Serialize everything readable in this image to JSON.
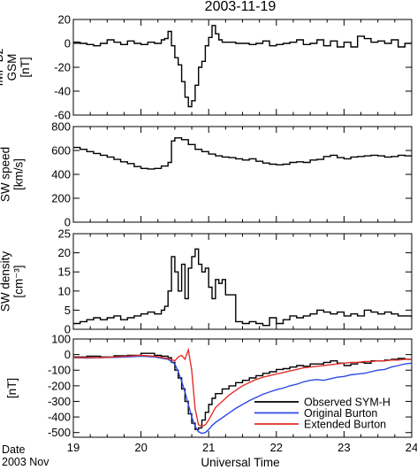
{
  "figure": {
    "title": "2003-11-19",
    "x_axis_label": "Universal Time",
    "date_label_line1": "Date",
    "date_label_line2": "2003 Nov"
  },
  "chart_data": [
    {
      "type": "line",
      "panel": "IMF Bz",
      "ylabel_lines": [
        "IMF Bz",
        "GSM",
        "[nT]"
      ],
      "xlim": [
        19,
        24
      ],
      "ylim": [
        -60,
        20
      ],
      "xticks": [
        19,
        20,
        21,
        22,
        23,
        24
      ],
      "yticks": [
        -60,
        -40,
        -20,
        0,
        20
      ],
      "step": true,
      "series": [
        {
          "name": "",
          "color": "#000000",
          "x": [
            19.0,
            19.1,
            19.2,
            19.3,
            19.4,
            19.5,
            19.6,
            19.7,
            19.8,
            19.9,
            20.0,
            20.1,
            20.2,
            20.3,
            20.35,
            20.4,
            20.45,
            20.5,
            20.55,
            20.6,
            20.65,
            20.7,
            20.75,
            20.8,
            20.85,
            20.9,
            20.95,
            21.0,
            21.05,
            21.1,
            21.15,
            21.2,
            21.3,
            21.4,
            21.5,
            21.6,
            21.7,
            21.8,
            21.9,
            22.0,
            22.1,
            22.2,
            22.3,
            22.4,
            22.5,
            22.6,
            22.7,
            22.8,
            22.9,
            23.0,
            23.1,
            23.2,
            23.3,
            23.4,
            23.5,
            23.6,
            23.7,
            23.8,
            23.9,
            24.0
          ],
          "y": [
            1,
            0,
            -1,
            -2,
            0,
            3,
            1,
            -1,
            2,
            0,
            -1,
            1,
            0,
            3,
            4,
            10,
            -2,
            -12,
            -18,
            -32,
            -45,
            -53,
            -48,
            -35,
            -20,
            -15,
            -2,
            5,
            15,
            8,
            3,
            1,
            1,
            0,
            0,
            -1,
            0,
            2,
            -2,
            -1,
            0,
            1,
            3,
            -1,
            0,
            3,
            -2,
            2,
            -3,
            1,
            -3,
            6,
            4,
            1,
            2,
            0,
            3,
            -3,
            0,
            1
          ]
        }
      ]
    },
    {
      "type": "line",
      "panel": "SW speed",
      "ylabel_lines": [
        "SW speed",
        "[km/s]"
      ],
      "xlim": [
        19,
        24
      ],
      "ylim": [
        0,
        800
      ],
      "xticks": [
        19,
        20,
        21,
        22,
        23,
        24
      ],
      "yticks": [
        0,
        200,
        400,
        600,
        800
      ],
      "step": true,
      "series": [
        {
          "name": "",
          "color": "#000000",
          "x": [
            19.0,
            19.1,
            19.2,
            19.3,
            19.4,
            19.5,
            19.6,
            19.7,
            19.8,
            19.9,
            20.0,
            20.1,
            20.2,
            20.3,
            20.4,
            20.45,
            20.5,
            20.6,
            20.7,
            20.8,
            20.9,
            21.0,
            21.1,
            21.2,
            21.3,
            21.4,
            21.5,
            21.6,
            21.7,
            21.8,
            21.9,
            22.0,
            22.1,
            22.2,
            22.3,
            22.4,
            22.5,
            22.6,
            22.7,
            22.8,
            22.9,
            23.0,
            23.1,
            23.2,
            23.3,
            23.4,
            23.5,
            23.6,
            23.7,
            23.8,
            23.9,
            24.0
          ],
          "y": [
            625,
            610,
            590,
            575,
            560,
            545,
            525,
            505,
            490,
            465,
            450,
            445,
            450,
            470,
            500,
            680,
            705,
            690,
            650,
            610,
            590,
            570,
            555,
            545,
            540,
            530,
            520,
            530,
            510,
            495,
            485,
            480,
            485,
            500,
            505,
            500,
            520,
            525,
            550,
            560,
            540,
            530,
            545,
            550,
            555,
            560,
            555,
            545,
            550,
            560,
            555,
            545
          ]
        }
      ]
    },
    {
      "type": "line",
      "panel": "SW density",
      "ylabel_lines": [
        "SW density",
        "[cm⁻³]"
      ],
      "xlim": [
        19,
        24
      ],
      "ylim": [
        0,
        25
      ],
      "xticks": [
        19,
        20,
        21,
        22,
        23,
        24
      ],
      "yticks": [
        0,
        5,
        10,
        15,
        20,
        25
      ],
      "step": true,
      "series": [
        {
          "name": "",
          "color": "#000000",
          "x": [
            19.0,
            19.1,
            19.2,
            19.3,
            19.4,
            19.5,
            19.6,
            19.7,
            19.8,
            19.9,
            20.0,
            20.1,
            20.2,
            20.3,
            20.35,
            20.4,
            20.45,
            20.5,
            20.55,
            20.6,
            20.65,
            20.7,
            20.75,
            20.8,
            20.85,
            20.9,
            20.95,
            21.0,
            21.05,
            21.1,
            21.15,
            21.2,
            21.25,
            21.3,
            21.4,
            21.5,
            21.6,
            21.7,
            21.8,
            21.9,
            22.0,
            22.1,
            22.2,
            22.3,
            22.4,
            22.5,
            22.6,
            22.7,
            22.8,
            22.9,
            23.0,
            23.1,
            23.2,
            23.3,
            23.4,
            23.5,
            23.6,
            23.7,
            23.8,
            23.9,
            24.0
          ],
          "y": [
            1.5,
            2,
            2.5,
            3,
            2.5,
            3,
            3.5,
            2.5,
            3,
            3.5,
            4,
            4.5,
            4,
            5,
            6,
            10,
            19,
            15,
            10,
            17,
            8,
            16,
            19,
            21,
            17,
            15,
            16,
            11,
            8,
            13,
            12,
            13,
            9,
            9,
            2,
            1.5,
            2,
            1.5,
            1,
            3,
            1.5,
            2.5,
            3.5,
            3,
            3.5,
            4,
            5,
            4.5,
            4,
            4.5,
            3.5,
            4,
            3.5,
            5,
            4.5,
            4,
            4.5,
            4,
            3.5,
            3.5,
            3
          ]
        }
      ]
    },
    {
      "type": "line",
      "panel": "SYM-H",
      "ylabel_lines": [
        "[nT]"
      ],
      "xlim": [
        19,
        24
      ],
      "ylim": [
        -530,
        100
      ],
      "xticks": [
        19,
        20,
        21,
        22,
        23,
        24
      ],
      "yticks": [
        -500,
        -400,
        -300,
        -200,
        -100,
        0,
        100
      ],
      "series": [
        {
          "name": "Observed SYM-H",
          "color": "#000000",
          "step": true,
          "x": [
            19.0,
            19.2,
            19.4,
            19.6,
            19.8,
            20.0,
            20.2,
            20.3,
            20.4,
            20.45,
            20.5,
            20.55,
            20.6,
            20.65,
            20.7,
            20.75,
            20.8,
            20.85,
            20.9,
            20.95,
            21.0,
            21.05,
            21.1,
            21.2,
            21.3,
            21.4,
            21.5,
            21.6,
            21.7,
            21.8,
            21.9,
            22.0,
            22.1,
            22.2,
            22.3,
            22.4,
            22.5,
            22.6,
            22.7,
            22.8,
            22.9,
            23.0,
            23.1,
            23.2,
            23.3,
            23.4,
            23.5,
            23.6,
            23.7,
            23.8,
            23.9,
            24.0
          ],
          "y": [
            -15,
            -10,
            -15,
            -8,
            -5,
            8,
            -5,
            -10,
            -20,
            -50,
            -100,
            -150,
            -220,
            -300,
            -380,
            -440,
            -480,
            -470,
            -420,
            -370,
            -320,
            -280,
            -250,
            -220,
            -200,
            -180,
            -165,
            -150,
            -135,
            -120,
            -110,
            -95,
            -90,
            -80,
            -70,
            -75,
            -60,
            -60,
            -50,
            -40,
            -55,
            -70,
            -60,
            -50,
            -55,
            -40,
            -40,
            -35,
            -30,
            -25,
            -30,
            -30
          ]
        },
        {
          "name": "Original Burton",
          "color": "#2d49e5",
          "x": [
            19.0,
            19.2,
            19.4,
            19.6,
            19.8,
            20.0,
            20.2,
            20.4,
            20.5,
            20.55,
            20.6,
            20.65,
            20.7,
            20.75,
            20.8,
            20.85,
            20.9,
            20.95,
            21.0,
            21.05,
            21.1,
            21.2,
            21.3,
            21.4,
            21.5,
            21.6,
            21.7,
            21.8,
            21.9,
            22.0,
            22.1,
            22.2,
            22.3,
            22.4,
            22.5,
            22.6,
            22.7,
            22.8,
            22.9,
            23.0,
            23.1,
            23.2,
            23.3,
            23.4,
            23.5,
            23.6,
            23.7,
            23.8,
            23.9,
            24.0
          ],
          "y": [
            -20,
            -22,
            -20,
            -18,
            -15,
            -10,
            -15,
            -30,
            -60,
            -110,
            -170,
            -240,
            -320,
            -400,
            -460,
            -495,
            -505,
            -500,
            -480,
            -455,
            -435,
            -405,
            -375,
            -345,
            -320,
            -295,
            -275,
            -255,
            -240,
            -225,
            -215,
            -200,
            -190,
            -175,
            -165,
            -160,
            -165,
            -155,
            -145,
            -140,
            -130,
            -125,
            -120,
            -110,
            -100,
            -95,
            -80,
            -70,
            -60,
            -55
          ]
        },
        {
          "name": "Extended Burton",
          "color": "#e0302a",
          "x": [
            19.0,
            19.2,
            19.4,
            19.6,
            19.8,
            20.0,
            20.2,
            20.4,
            20.5,
            20.55,
            20.6,
            20.65,
            20.7,
            20.75,
            20.8,
            20.85,
            20.9,
            20.95,
            21.0,
            21.05,
            21.1,
            21.2,
            21.3,
            21.4,
            21.5,
            21.6,
            21.7,
            21.8,
            21.9,
            22.0,
            22.1,
            22.2,
            22.3,
            22.4,
            22.5,
            22.6,
            22.7,
            22.8,
            22.9,
            23.0,
            23.1,
            23.2,
            23.3,
            23.4,
            23.5,
            23.6,
            23.7,
            23.8,
            23.9,
            24.0
          ],
          "y": [
            -20,
            -18,
            -20,
            -15,
            -10,
            -5,
            -10,
            -25,
            -40,
            -15,
            -5,
            -30,
            30,
            -100,
            -350,
            -450,
            -460,
            -450,
            -420,
            -380,
            -340,
            -300,
            -260,
            -230,
            -200,
            -180,
            -160,
            -145,
            -135,
            -125,
            -115,
            -105,
            -95,
            -85,
            -80,
            -75,
            -70,
            -65,
            -60,
            -55,
            -50,
            -50,
            -45,
            -45,
            -40,
            -40,
            -35,
            -35,
            -30,
            -30
          ]
        }
      ],
      "legend": {
        "placement": "bottom-right"
      }
    }
  ]
}
